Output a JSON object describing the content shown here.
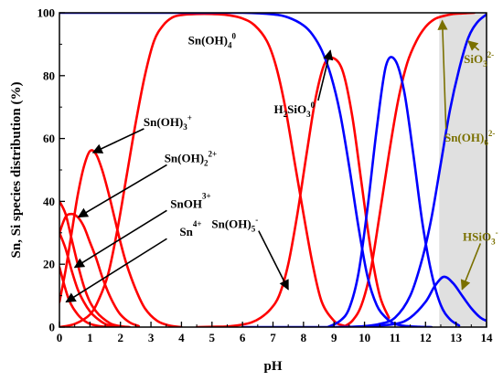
{
  "colors": {
    "tin": "#ff0000",
    "silicon": "#0000ff",
    "annotation_dark": "#7a7000",
    "shade": "#e0e0e0"
  },
  "chart_data": {
    "type": "line",
    "title": "",
    "xlabel": "pH",
    "ylabel": "Sn, Si species distribution (%)",
    "xlim": [
      0,
      14
    ],
    "ylim": [
      0,
      100
    ],
    "xticks": [
      "0",
      "1",
      "2",
      "3",
      "4",
      "5",
      "6",
      "7",
      "8",
      "9",
      "10",
      "11",
      "12",
      "13",
      "14"
    ],
    "yticks": [
      "0",
      "20",
      "40",
      "60",
      "80",
      "100"
    ],
    "grid": false,
    "legend": "none",
    "shaded_region": {
      "x_from": 12.45,
      "x_to": 14
    },
    "series": [
      {
        "color": "#ff0000",
        "x": [
          0,
          0.3,
          0.6,
          0.9,
          1.2,
          1.5,
          1.8
        ],
        "y": [
          19,
          9,
          4,
          1.5,
          0.5,
          0.1,
          0
        ]
      },
      {
        "color": "#ff0000",
        "x": [
          0,
          0.2,
          0.4,
          0.6,
          0.8,
          1.0,
          1.2,
          1.5,
          1.8,
          2.1
        ],
        "y": [
          30,
          25,
          18,
          12,
          8,
          5,
          3,
          1,
          0.3,
          0
        ]
      },
      {
        "color": "#ff0000",
        "x": [
          0,
          0.2,
          0.4,
          0.6,
          0.8,
          1.0,
          1.2,
          1.4,
          1.7,
          2.0,
          2.3
        ],
        "y": [
          40,
          36,
          28,
          20,
          13,
          8,
          5,
          3,
          1,
          0.3,
          0
        ]
      },
      {
        "color": "#ff0000",
        "x": [
          0,
          0.2,
          0.4,
          0.6,
          0.8,
          1.0,
          1.2,
          1.4,
          1.6,
          1.8,
          2.0,
          2.3,
          2.6
        ],
        "y": [
          30,
          35,
          36,
          35,
          32,
          27,
          22,
          16,
          11,
          7,
          4,
          1.5,
          0.3
        ]
      },
      {
        "color": "#ff0000",
        "x": [
          0,
          0.2,
          0.4,
          0.6,
          0.8,
          1.0,
          1.2,
          1.4,
          1.6,
          1.8,
          2.0,
          2.2,
          2.5,
          2.8,
          3.2,
          3.6,
          4.0
        ],
        "y": [
          8,
          18,
          30,
          42,
          51,
          56,
          55,
          50,
          43,
          35,
          27,
          20,
          12,
          6,
          2,
          0.5,
          0
        ]
      },
      {
        "color": "#ff0000",
        "x": [
          0,
          0.5,
          1.0,
          1.3,
          1.6,
          1.9,
          2.2,
          2.5,
          2.8,
          3.1,
          3.4,
          3.7,
          4.0,
          4.5,
          5.0,
          5.5,
          6.0,
          6.4,
          6.8,
          7.1,
          7.4,
          7.7,
          8.0,
          8.3,
          8.6,
          9.0,
          9.3,
          9.6
        ],
        "y": [
          0,
          1,
          4,
          9,
          17,
          31,
          48,
          65,
          80,
          91,
          96,
          98.5,
          99.3,
          99.6,
          99.6,
          99.3,
          98.2,
          96,
          91,
          83,
          70,
          53,
          36,
          20,
          8,
          2,
          0.5,
          0
        ]
      },
      {
        "color": "#ff0000",
        "x": [
          4.5,
          5.0,
          5.5,
          6.0,
          6.3,
          6.6,
          6.9,
          7.2,
          7.5,
          7.8,
          8.1,
          8.4,
          8.7,
          9.0,
          9.3,
          9.6,
          9.9,
          10.2,
          10.5,
          10.8
        ],
        "y": [
          0,
          0.1,
          0.2,
          0.8,
          1.5,
          3,
          5.5,
          10,
          20,
          36,
          55,
          73,
          84,
          85.5,
          81,
          67,
          46,
          25,
          10,
          3
        ]
      },
      {
        "color": "#ff0000",
        "x": [
          9.3,
          9.6,
          9.9,
          10.2,
          10.5,
          10.8,
          11.1,
          11.4,
          11.7,
          12.0,
          12.3,
          12.6,
          12.9,
          13.2,
          13.6
        ],
        "y": [
          0,
          2,
          7,
          18,
          36,
          55,
          72,
          84,
          91,
          95.5,
          98,
          99,
          99.6,
          99.8,
          100
        ]
      },
      {
        "color": "#0000ff",
        "x": [
          0,
          2,
          4,
          6,
          7,
          7.5,
          8.0,
          8.3,
          8.6,
          8.9,
          9.2,
          9.5,
          9.8,
          10.1,
          10.4,
          10.7,
          11.0,
          11.4,
          11.8,
          12.2
        ],
        "y": [
          100,
          100,
          100,
          100,
          99.5,
          98.5,
          96,
          93,
          88,
          80,
          68,
          51,
          32,
          16,
          7,
          3,
          1,
          0.3,
          0.1,
          0
        ]
      },
      {
        "color": "#0000ff",
        "x": [
          8.8,
          9.2,
          9.5,
          9.8,
          10.1,
          10.4,
          10.7,
          11.0,
          11.3,
          11.6,
          11.9,
          12.2,
          12.5,
          12.8,
          13.1
        ],
        "y": [
          0,
          2,
          6,
          17,
          38,
          63,
          83,
          85,
          75,
          55,
          33,
          17,
          7,
          2.5,
          0.5
        ]
      },
      {
        "color": "#0000ff",
        "x": [
          9.5,
          10.0,
          10.5,
          11.0,
          11.5,
          11.9,
          12.2,
          12.5,
          12.8,
          13.1,
          13.4,
          13.7,
          14.0
        ],
        "y": [
          0,
          0.3,
          1,
          3,
          10,
          22,
          35,
          52,
          69,
          82,
          92,
          97,
          99.5
        ]
      },
      {
        "color": "#0000ff",
        "x": [
          6.0,
          7.0,
          8.0,
          9.0,
          10.0,
          11.0,
          11.5,
          12.0,
          12.3,
          12.6,
          12.9,
          13.2,
          13.5,
          13.8,
          14.0
        ],
        "y": [
          0,
          0,
          0,
          0,
          0.2,
          1,
          3,
          8,
          13,
          16,
          14,
          10,
          6,
          3,
          2
        ]
      }
    ],
    "annotations": [
      {
        "text": "Sn",
        "sup": "4+",
        "sub": "",
        "color": "#000000",
        "x": 4.3,
        "y": 29,
        "arrow_to": [
          0.22,
          8
        ]
      },
      {
        "text": "SnOH",
        "sup": "3+",
        "sub": "",
        "color": "#000000",
        "x": 4.3,
        "y": 38,
        "arrow_to": [
          0.5,
          19
        ]
      },
      {
        "text": "Sn(OH)",
        "sup": "2+",
        "sub": "2",
        "color": "#000000",
        "x": 4.3,
        "y": 52.5,
        "arrow_to": [
          0.62,
          35
        ]
      },
      {
        "text": "Sn(OH)",
        "sup": "+",
        "sub": "3",
        "color": "#000000",
        "x": 3.55,
        "y": 64,
        "arrow_to": [
          1.1,
          55.5
        ]
      },
      {
        "text": "Sn(OH)",
        "sup": "0",
        "sub": "4",
        "color": "#000000",
        "x": 5.0,
        "y": 90,
        "arrow_to": null
      },
      {
        "text": "Sn(OH)",
        "sup": "-",
        "sub": "5",
        "color": "#000000",
        "x": 5.75,
        "y": 31.5,
        "arrow_to": [
          7.5,
          12
        ]
      },
      {
        "text": "H",
        "sup": "0",
        "sub": "2",
        "after_sub": "SiO",
        "sub2": "3",
        "color": "#000000",
        "x": 7.7,
        "y": 68,
        "arrow_to": [
          8.88,
          88
        ]
      },
      {
        "text": "Sn(OH)",
        "sup": "2-",
        "sub": "6",
        "color": "#7a7000",
        "x": 13.45,
        "y": 59,
        "arrow_to": [
          12.55,
          97.5
        ]
      },
      {
        "text": "SiO",
        "sup": "2-",
        "sub": "3",
        "color": "#7a7000",
        "x": 13.75,
        "y": 84,
        "arrow_to": [
          13.4,
          91
        ]
      },
      {
        "text": "HSiO",
        "sup": "-",
        "sub": "3",
        "color": "#7a7000",
        "x": 13.8,
        "y": 27.5,
        "arrow_to": [
          13.2,
          12
        ]
      }
    ]
  }
}
